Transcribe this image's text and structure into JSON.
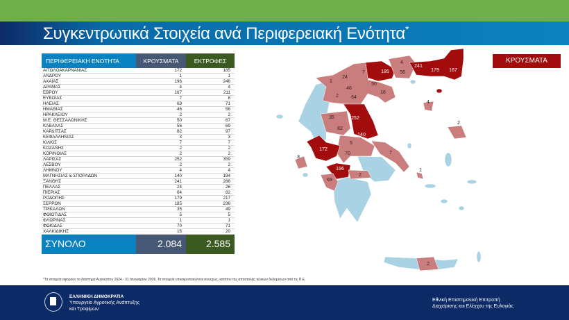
{
  "header": {
    "title": "Συγκεντρωτικά Στοιχεία ανά Περιφερειακή Ενότητα",
    "title_mark": "*"
  },
  "table": {
    "columns": [
      "ΠΕΡΙΦΕΡΕΙΑΚΗ ΕΝΟΤΗΤΑ",
      "ΚΡΟΥΣΜΑΤΑ",
      "ΕΚΤΡΟΦΕΣ"
    ],
    "rows": [
      [
        "ΑΙΤΩΛΟΑΚΑΡΝΑΝΙΑΣ",
        "172",
        "185"
      ],
      [
        "ΑΝΔΡΟΥ",
        "1",
        "1"
      ],
      [
        "ΑΧΑΪΑΣ",
        "196",
        "246"
      ],
      [
        "ΔΡΑΜΑΣ",
        "4",
        "4"
      ],
      [
        "ΕΒΡΟΥ",
        "167",
        "211"
      ],
      [
        "ΕΥΒΟΙΑΣ",
        "7",
        "8"
      ],
      [
        "ΗΛΕΙΑΣ",
        "69",
        "71"
      ],
      [
        "ΗΜΑΘΙΑΣ",
        "46",
        "56"
      ],
      [
        "ΗΡΑΚΛΕΙΟΥ",
        "2",
        "2"
      ],
      [
        "Μ.Ε. ΘΕΣΣΑΛΟΝΙΚΗΣ",
        "50",
        "67"
      ],
      [
        "ΚΑΒΑΛΑΣ",
        "56",
        "69"
      ],
      [
        "ΚΑΡΔΙΤΣΑΣ",
        "82",
        "97"
      ],
      [
        "ΚΕΦΑΛΛΗΝΙΑΣ",
        "3",
        "3"
      ],
      [
        "ΚΙΛΚΙΣ",
        "7",
        "7"
      ],
      [
        "ΚΟΖΑΝΗΣ",
        "2",
        "2"
      ],
      [
        "ΚΟΡΙΝΘΙΑΣ",
        "2",
        "2"
      ],
      [
        "ΛΑΡΙΣΑΣ",
        "252",
        "359"
      ],
      [
        "ΛΕΣΒΟΥ",
        "2",
        "2"
      ],
      [
        "ΛΗΜΝΟΥ",
        "4",
        "4"
      ],
      [
        "ΜΑΓΝΗΣΙΑΣ & ΣΠΟΡΑΔΩΝ",
        "140",
        "194"
      ],
      [
        "ΞΑΝΘΗΣ",
        "241",
        "288"
      ],
      [
        "ΠΕΛΛΑΣ",
        "24",
        "26"
      ],
      [
        "ΠΙΕΡΙΑΣ",
        "64",
        "82"
      ],
      [
        "ΡΟΔΟΠΗΣ",
        "179",
        "217"
      ],
      [
        "ΣΕΡΡΩΝ",
        "185",
        "236"
      ],
      [
        "ΤΡΙΚΑΛΩΝ",
        "35",
        "49"
      ],
      [
        "ΦΘΙΩΤΙΔΑΣ",
        "5",
        "5"
      ],
      [
        "ΦΛΩΡΙΝΑΣ",
        "1",
        "1"
      ],
      [
        "ΦΩΚΙΔΑΣ",
        "70",
        "71"
      ],
      [
        "ΧΑΛΚΙΔΙΚΗΣ",
        "16",
        "20"
      ]
    ],
    "total": {
      "label": "ΣΥΝΟΛΟ",
      "cases": "2.084",
      "farms": "2.585"
    }
  },
  "map": {
    "legend": "ΚΡΟΥΣΜΑΤΑ",
    "colors": {
      "high": "#a20c0c",
      "low": "#c97d7d",
      "none": "#a9d3e5"
    },
    "labels": [
      "185",
      "4",
      "241",
      "56",
      "179",
      "167",
      "7",
      "24",
      "1",
      "50",
      "46",
      "16",
      "2",
      "64",
      "4",
      "2",
      "35",
      "252",
      "82",
      "140",
      "5",
      "172",
      "70",
      "7",
      "3",
      "196",
      "2",
      "1",
      "69",
      "2"
    ]
  },
  "footnote": "*Τα στοιχεία αφορούν το διάστημα Αυγούστου 2024 - 31 Ιανουαρίου 2026. Τα στοιχεία επικαιροποιούνται συνεχώς, κατόπιν της αποστολής τελικών δεδομένων από τις Π.Ε.",
  "footer": {
    "org1": "ΕΛΛΗΝΙΚΗ ΔΗΜΟΚΡΑΤΙΑ",
    "org2": "Υπουργείο Αγροτικής Ανάπτυξης",
    "org3": "και Τροφίμων",
    "committee1": "Εθνική Επιστημονική Επιτροπή",
    "committee2": "Διαχείρισης και Ελέγχου της Ευλογιάς"
  }
}
